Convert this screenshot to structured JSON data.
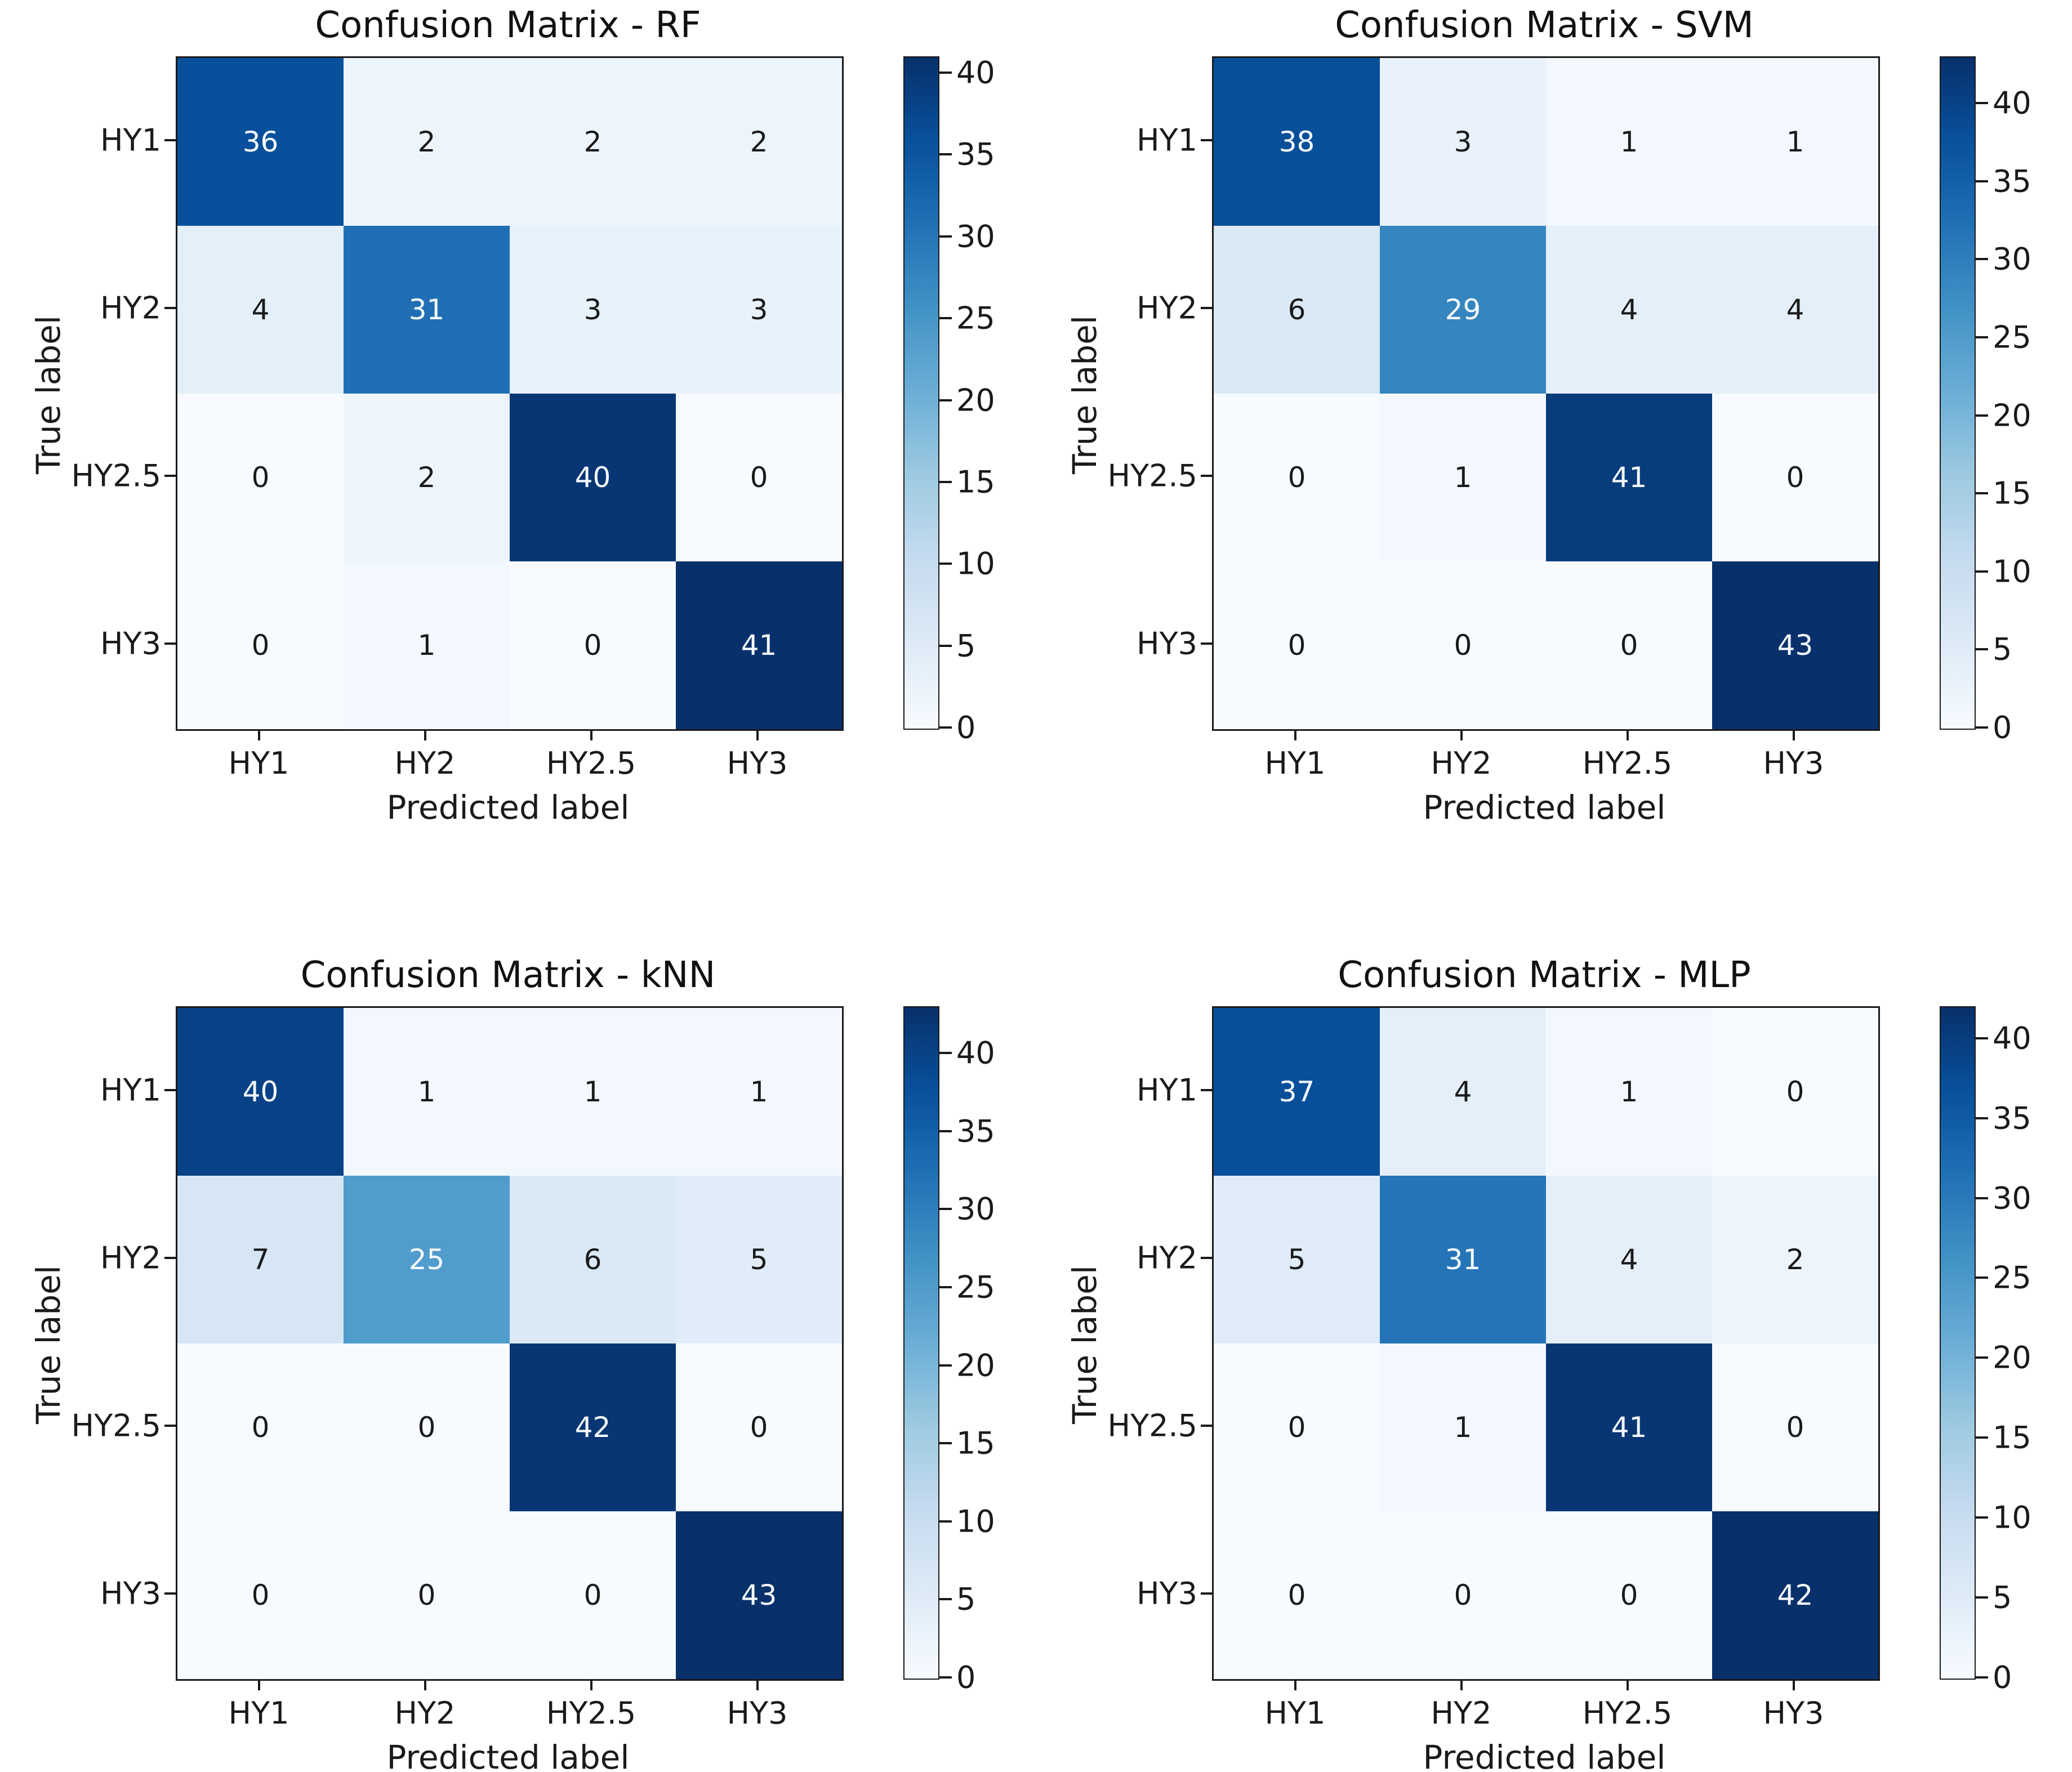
{
  "figure": {
    "background": "#ffffff",
    "colormap": "Blues",
    "cmap_stops": [
      "#f7fbff",
      "#deebf7",
      "#c6dbef",
      "#9ecae1",
      "#6baed6",
      "#4292c6",
      "#2171b5",
      "#08519c",
      "#08306b"
    ],
    "annotation_dark_color": "#1a1a1a",
    "annotation_light_color": "#f5fafe",
    "spine_color": "#1a1a1a"
  },
  "chart_data": [
    {
      "type": "heatmap",
      "title": "Confusion Matrix - RF",
      "xlabel": "Predicted label",
      "ylabel": "True label",
      "x_categories": [
        "HY1",
        "HY2",
        "HY2.5",
        "HY3"
      ],
      "y_categories": [
        "HY1",
        "HY2",
        "HY2.5",
        "HY3"
      ],
      "matrix": [
        [
          36,
          2,
          2,
          2
        ],
        [
          4,
          31,
          3,
          3
        ],
        [
          0,
          2,
          40,
          0
        ],
        [
          0,
          1,
          0,
          41
        ]
      ],
      "vmin": 0,
      "vmax": 41,
      "colorbar_ticks": [
        0,
        5,
        10,
        15,
        20,
        25,
        30,
        35,
        40
      ],
      "legend_position": "right-colorbar",
      "grid": false
    },
    {
      "type": "heatmap",
      "title": "Confusion Matrix - SVM",
      "xlabel": "Predicted label",
      "ylabel": "True label",
      "x_categories": [
        "HY1",
        "HY2",
        "HY2.5",
        "HY3"
      ],
      "y_categories": [
        "HY1",
        "HY2",
        "HY2.5",
        "HY3"
      ],
      "matrix": [
        [
          38,
          3,
          1,
          1
        ],
        [
          6,
          29,
          4,
          4
        ],
        [
          0,
          1,
          41,
          0
        ],
        [
          0,
          0,
          0,
          43
        ]
      ],
      "vmin": 0,
      "vmax": 43,
      "colorbar_ticks": [
        0,
        5,
        10,
        15,
        20,
        25,
        30,
        35,
        40
      ],
      "legend_position": "right-colorbar",
      "grid": false
    },
    {
      "type": "heatmap",
      "title": "Confusion Matrix - kNN",
      "xlabel": "Predicted label",
      "ylabel": "True label",
      "x_categories": [
        "HY1",
        "HY2",
        "HY2.5",
        "HY3"
      ],
      "y_categories": [
        "HY1",
        "HY2",
        "HY2.5",
        "HY3"
      ],
      "matrix": [
        [
          40,
          1,
          1,
          1
        ],
        [
          7,
          25,
          6,
          5
        ],
        [
          0,
          0,
          42,
          0
        ],
        [
          0,
          0,
          0,
          43
        ]
      ],
      "vmin": 0,
      "vmax": 43,
      "colorbar_ticks": [
        0,
        5,
        10,
        15,
        20,
        25,
        30,
        35,
        40
      ],
      "legend_position": "right-colorbar",
      "grid": false
    },
    {
      "type": "heatmap",
      "title": "Confusion Matrix - MLP",
      "xlabel": "Predicted label",
      "ylabel": "True label",
      "x_categories": [
        "HY1",
        "HY2",
        "HY2.5",
        "HY3"
      ],
      "y_categories": [
        "HY1",
        "HY2",
        "HY2.5",
        "HY3"
      ],
      "matrix": [
        [
          37,
          4,
          1,
          0
        ],
        [
          5,
          31,
          4,
          2
        ],
        [
          0,
          1,
          41,
          0
        ],
        [
          0,
          0,
          0,
          42
        ]
      ],
      "vmin": 0,
      "vmax": 42,
      "colorbar_ticks": [
        0,
        5,
        10,
        15,
        20,
        25,
        30,
        35,
        40
      ],
      "legend_position": "right-colorbar",
      "grid": false
    }
  ]
}
